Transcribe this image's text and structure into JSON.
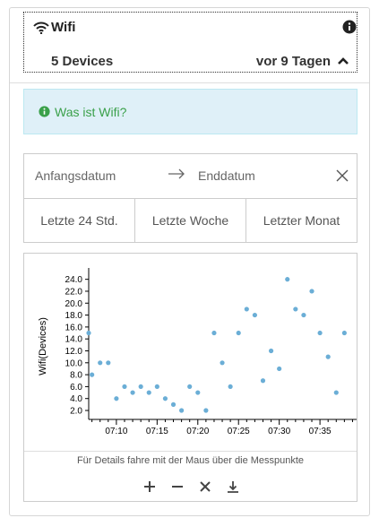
{
  "header": {
    "title": "Wifi",
    "devices": "5 Devices",
    "ago": "vor 9 Tagen",
    "icons": [
      "wifi-icon",
      "info-circle-icon",
      "chevron-up-icon"
    ]
  },
  "alert": {
    "text": "Was ist Wifi?",
    "color": "#3aa04a",
    "background": "#dff0f8"
  },
  "dates": {
    "start_placeholder": "Anfangsdatum",
    "end_placeholder": "Enddatum",
    "ranges": [
      "Letzte 24 Std.",
      "Letzte Woche",
      "Letzter Monat"
    ]
  },
  "chart": {
    "hint": "Für Details fahre mit der Maus über die Messpunkte",
    "tools": [
      "plus-icon",
      "minus-icon",
      "close-icon",
      "download-icon"
    ]
  },
  "chart_data": {
    "type": "scatter",
    "ylabel": "Wifi(Devices)",
    "ylim": [
      0.5,
      25
    ],
    "yticks": [
      "2.0",
      "4.0",
      "6.0",
      "8.0",
      "10.0",
      "12.0",
      "14.0",
      "16.0",
      "18.0",
      "20.0",
      "22.0",
      "24.0"
    ],
    "xticks": [
      "07:10",
      "07:15",
      "07:20",
      "07:25",
      "07:30",
      "07:35"
    ],
    "xtick_minutes": [
      10,
      15,
      20,
      25,
      30,
      35
    ],
    "xlim": [
      6.6,
      40.6
    ],
    "point_color": "#6baed6",
    "x": [
      6.6,
      7.0,
      8.0,
      9.0,
      10.0,
      11.0,
      12.0,
      13.0,
      14.0,
      15.0,
      16.0,
      17.0,
      18.0,
      19.0,
      20.0,
      21.0,
      22.0,
      23.0,
      24.0,
      25.0,
      26.0,
      27.0,
      28.0,
      29.0,
      30.0,
      31.0,
      32.0,
      33.0,
      34.0,
      35.0,
      36.0,
      37.0,
      38.0
    ],
    "y": [
      15,
      8,
      10,
      10,
      4,
      6,
      5,
      6,
      5,
      6,
      4,
      3,
      2,
      6,
      5,
      2,
      15,
      10,
      6,
      15,
      19,
      18,
      7,
      12,
      9,
      24,
      19,
      18,
      22,
      15,
      11,
      5,
      15
    ]
  }
}
